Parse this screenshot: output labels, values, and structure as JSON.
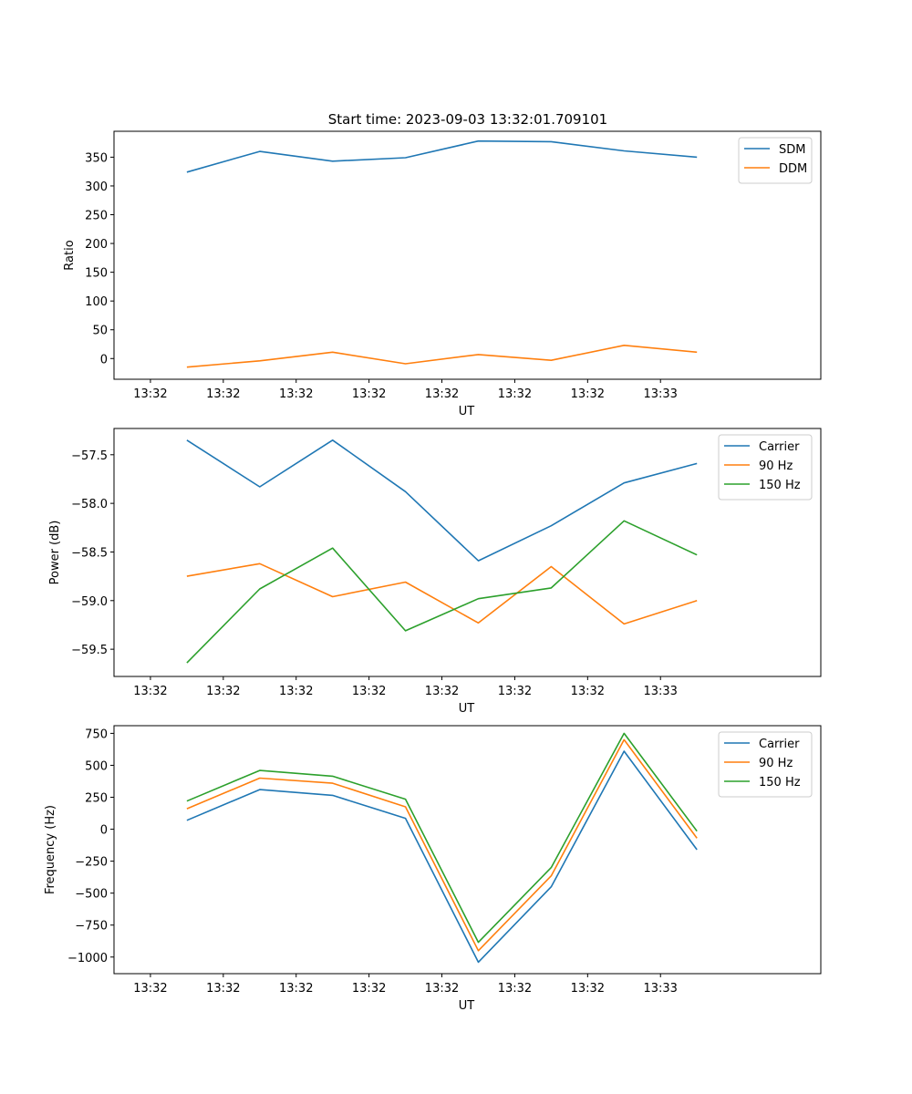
{
  "figure": {
    "title": "Start time: 2023-09-03 13:32:01.709101"
  },
  "chart_data": [
    {
      "type": "line",
      "title": "Start time: 2023-09-03 13:32:01.709101",
      "xlabel": "UT",
      "ylabel": "Ratio",
      "x_tick_labels": [
        "13:32",
        "13:32",
        "13:32",
        "13:32",
        "13:32",
        "13:32",
        "13:32",
        "13:33"
      ],
      "x_range": [
        -0.5,
        9.2
      ],
      "x": [
        0.5,
        1.5,
        2.5,
        3.5,
        4.5,
        5.5,
        6.5,
        7.5
      ],
      "ylim": [
        -36,
        395
      ],
      "y_ticks": [
        0,
        50,
        100,
        150,
        200,
        250,
        300,
        350
      ],
      "y_tick_labels": [
        "0",
        "50",
        "100",
        "150",
        "200",
        "250",
        "300",
        "350"
      ],
      "legend": "top-right",
      "grid": false,
      "series": [
        {
          "name": "SDM",
          "color": "#1f77b4",
          "values": [
            324,
            360,
            343,
            349,
            378,
            377,
            361,
            350
          ]
        },
        {
          "name": "DDM",
          "color": "#ff7f0e",
          "values": [
            -15,
            -4,
            11,
            -9,
            7,
            -3,
            23,
            11
          ]
        }
      ]
    },
    {
      "type": "line",
      "title": "",
      "xlabel": "UT",
      "ylabel": "Power (dB)",
      "x_tick_labels": [
        "13:32",
        "13:32",
        "13:32",
        "13:32",
        "13:32",
        "13:32",
        "13:32",
        "13:33"
      ],
      "x_range": [
        -0.5,
        9.2
      ],
      "x": [
        0.5,
        1.5,
        2.5,
        3.5,
        4.5,
        5.5,
        6.5,
        7.5
      ],
      "ylim": [
        -59.78,
        -57.23
      ],
      "y_ticks": [
        -57.5,
        -58.0,
        -58.5,
        -59.0,
        -59.5
      ],
      "y_tick_labels": [
        "−57.5",
        "−58.0",
        "−58.5",
        "−59.0",
        "−59.5"
      ],
      "legend": "top-right",
      "grid": false,
      "series": [
        {
          "name": "Carrier",
          "color": "#1f77b4",
          "values": [
            -57.35,
            -57.83,
            -57.35,
            -57.88,
            -58.59,
            -58.23,
            -57.79,
            -57.59
          ]
        },
        {
          "name": "90 Hz",
          "color": "#ff7f0e",
          "values": [
            -58.75,
            -58.62,
            -58.96,
            -58.81,
            -59.23,
            -58.65,
            -59.24,
            -59.0
          ]
        },
        {
          "name": "150 Hz",
          "color": "#2ca02c",
          "values": [
            -59.64,
            -58.88,
            -58.46,
            -59.31,
            -58.98,
            -58.87,
            -58.18,
            -58.53
          ]
        }
      ]
    },
    {
      "type": "line",
      "title": "",
      "xlabel": "UT",
      "ylabel": "Frequency (Hz)",
      "x_tick_labels": [
        "13:32",
        "13:32",
        "13:32",
        "13:32",
        "13:32",
        "13:32",
        "13:32",
        "13:33"
      ],
      "x_range": [
        -0.5,
        9.2
      ],
      "x": [
        0.5,
        1.5,
        2.5,
        3.5,
        4.5,
        5.5,
        6.5,
        7.5
      ],
      "ylim": [
        -1130,
        810
      ],
      "y_ticks": [
        750,
        500,
        250,
        0,
        -250,
        -500,
        -750,
        -1000
      ],
      "y_tick_labels": [
        "750",
        "500",
        "250",
        "0",
        "−250",
        "−500",
        "−750",
        "−1000"
      ],
      "legend": "top-right",
      "grid": false,
      "series": [
        {
          "name": "Carrier",
          "color": "#1f77b4",
          "values": [
            70,
            310,
            265,
            85,
            -1040,
            -450,
            610,
            -160
          ]
        },
        {
          "name": "90 Hz",
          "color": "#ff7f0e",
          "values": [
            160,
            400,
            360,
            175,
            -950,
            -365,
            700,
            -70
          ]
        },
        {
          "name": "150 Hz",
          "color": "#2ca02c",
          "values": [
            220,
            460,
            415,
            235,
            -885,
            -300,
            750,
            -15
          ]
        }
      ]
    }
  ]
}
